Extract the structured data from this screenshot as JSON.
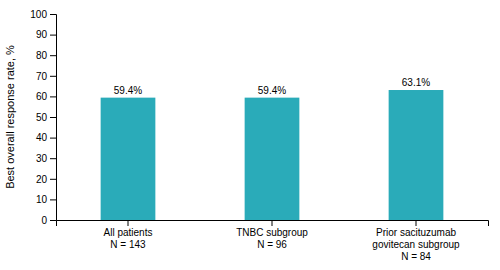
{
  "chart_data": {
    "type": "bar",
    "categories": [
      "All patients\nN = 143",
      "TNBC subgroup\nN = 96",
      "Prior sacituzumab\ngovitecan subgroup\nN = 84"
    ],
    "values": [
      59.4,
      59.4,
      63.1
    ],
    "value_labels": [
      "59.4%",
      "59.4%",
      "63.1%"
    ],
    "data_labels": true,
    "color": "#2aabb9",
    "ylabel": "Best overall response rate, %",
    "ylim": [
      0,
      100
    ],
    "yticks": [
      0,
      10,
      20,
      30,
      40,
      50,
      60,
      70,
      80,
      90,
      100
    ],
    "grid": false
  }
}
